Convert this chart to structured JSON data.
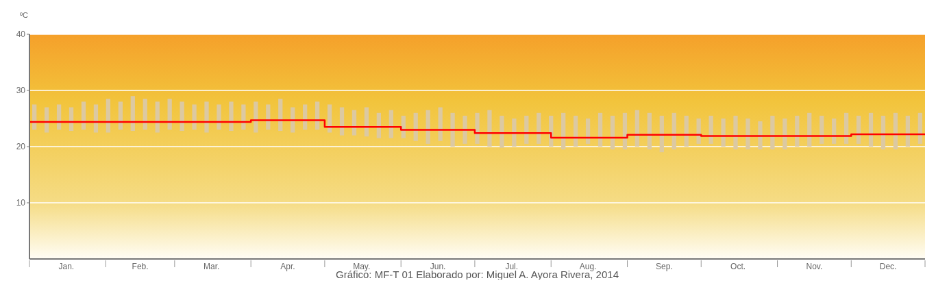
{
  "chart_data": {
    "type": "step",
    "ylabel": "ºC",
    "xlim": [
      "--01-01",
      "--12-31"
    ],
    "ylim": [
      0,
      40
    ],
    "yticks": [
      10,
      20,
      30,
      40
    ],
    "grid": "y",
    "xticks": [
      {
        "value": "--01-01",
        "label": null
      },
      {
        "value": "--01-16",
        "label": "Jan."
      },
      {
        "value": "--02-01",
        "label": null
      },
      {
        "value": "--02-15",
        "label": "Feb."
      },
      {
        "value": "--03-01",
        "label": null
      },
      {
        "value": "--03-16",
        "label": "Mar."
      },
      {
        "value": "--04-01",
        "label": null
      },
      {
        "value": "--04-16",
        "label": "Apr."
      },
      {
        "value": "--05-01",
        "label": null
      },
      {
        "value": "--05-16",
        "label": "May."
      },
      {
        "value": "--06-01",
        "label": null
      },
      {
        "value": "--06-16",
        "label": "Jun."
      },
      {
        "value": "--07-01",
        "label": null
      },
      {
        "value": "--07-16",
        "label": "Jul."
      },
      {
        "value": "--08-01",
        "label": null
      },
      {
        "value": "--08-16",
        "label": "Aug."
      },
      {
        "value": "--09-01",
        "label": null
      },
      {
        "value": "--09-16",
        "label": "Sep."
      },
      {
        "value": "--10-01",
        "label": null
      },
      {
        "value": "--10-16",
        "label": "Oct."
      },
      {
        "value": "--11-01",
        "label": null
      },
      {
        "value": "--11-16",
        "label": "Nov."
      },
      {
        "value": "--12-01",
        "label": null
      },
      {
        "value": "--12-16",
        "label": "Dec."
      },
      {
        "value": "--12-31",
        "label": null
      }
    ],
    "series": [
      {
        "type": "bar",
        "color": "#dcc9a2",
        "x": [
          "--01-03",
          "--01-08",
          "--01-13",
          "--01-18",
          "--01-23",
          "--01-28",
          "--02-02",
          "--02-07",
          "--02-12",
          "--02-17",
          "--02-22",
          "--02-27",
          "--03-04",
          "--03-09",
          "--03-14",
          "--03-19",
          "--03-24",
          "--03-29",
          "--04-03",
          "--04-08",
          "--04-13",
          "--04-18",
          "--04-23",
          "--04-28",
          "--05-03",
          "--05-08",
          "--05-13",
          "--05-18",
          "--05-23",
          "--05-28",
          "--06-02",
          "--06-07",
          "--06-12",
          "--06-17",
          "--06-22",
          "--06-27",
          "--07-02",
          "--07-07",
          "--07-12",
          "--07-17",
          "--07-22",
          "--07-27",
          "--08-01",
          "--08-06",
          "--08-11",
          "--08-16",
          "--08-21",
          "--08-26",
          "--08-31",
          "--09-05",
          "--09-10",
          "--09-15",
          "--09-20",
          "--09-25",
          "--09-30",
          "--10-05",
          "--10-10",
          "--10-15",
          "--10-20",
          "--10-25",
          "--10-30",
          "--11-04",
          "--11-09",
          "--11-14",
          "--11-19",
          "--11-24",
          "--11-29",
          "--12-04",
          "--12-09",
          "--12-14",
          "--12-19",
          "--12-24",
          "--12-29"
        ],
        "base": [
          23,
          22.5,
          23,
          22.8,
          23,
          22.5,
          22.5,
          23,
          22.8,
          23,
          22.5,
          23,
          22.8,
          23,
          22.5,
          23,
          22.8,
          23,
          22.5,
          23,
          22.8,
          22.5,
          23,
          23,
          22.5,
          22,
          22,
          21.8,
          21.5,
          21.5,
          21.5,
          21,
          20.5,
          21,
          20,
          20.5,
          20.5,
          20,
          19.8,
          20,
          20.5,
          20.5,
          20,
          19.5,
          20,
          20.5,
          20,
          19.5,
          19.5,
          20,
          19.5,
          19,
          19.5,
          20,
          20.5,
          20.5,
          20,
          19.5,
          19.5,
          19.5,
          19.5,
          19.5,
          20,
          20,
          20.5,
          20.5,
          20.5,
          20.5,
          20,
          19.5,
          19.5,
          20,
          20.5
        ],
        "values": [
          4.5,
          4.5,
          4.5,
          4.2,
          5,
          5,
          6,
          5,
          6.2,
          5.5,
          5.5,
          5.5,
          5.2,
          4.5,
          5.5,
          4.5,
          5.2,
          4.5,
          5.5,
          4.5,
          5.7,
          4.5,
          4.5,
          5,
          5,
          5,
          4.5,
          5.2,
          4.5,
          5,
          4,
          5,
          6,
          6,
          6,
          5,
          5.5,
          6.5,
          5.7,
          5,
          5,
          5.5,
          5.5,
          6.5,
          5.5,
          4.5,
          6,
          6,
          6.5,
          6.5,
          6.5,
          6.5,
          6.5,
          5.5,
          4.5,
          5,
          5,
          6,
          5.5,
          5,
          6,
          5.5,
          5.5,
          6,
          5,
          4.5,
          5.5,
          5,
          6,
          6,
          6.5,
          5.5,
          5.5
        ]
      },
      {
        "color": "#ff0000",
        "x": [
          "--01-01",
          "--02-01",
          "--03-01",
          "--04-01",
          "--05-01",
          "--06-01",
          "--07-01",
          "--08-01",
          "--09-01",
          "--10-01",
          "--11-01",
          "--12-01",
          "--12-31"
        ],
        "values": [
          24.4,
          24.4,
          24.4,
          24.7,
          23.5,
          23.0,
          22.4,
          21.6,
          22.1,
          21.9,
          21.9,
          22.2,
          22.2
        ]
      }
    ],
    "annotations": [
      "Gráfico: MF-T 01   Elaborado por: Miguel A. Ayora Rivera, 2014"
    ]
  }
}
